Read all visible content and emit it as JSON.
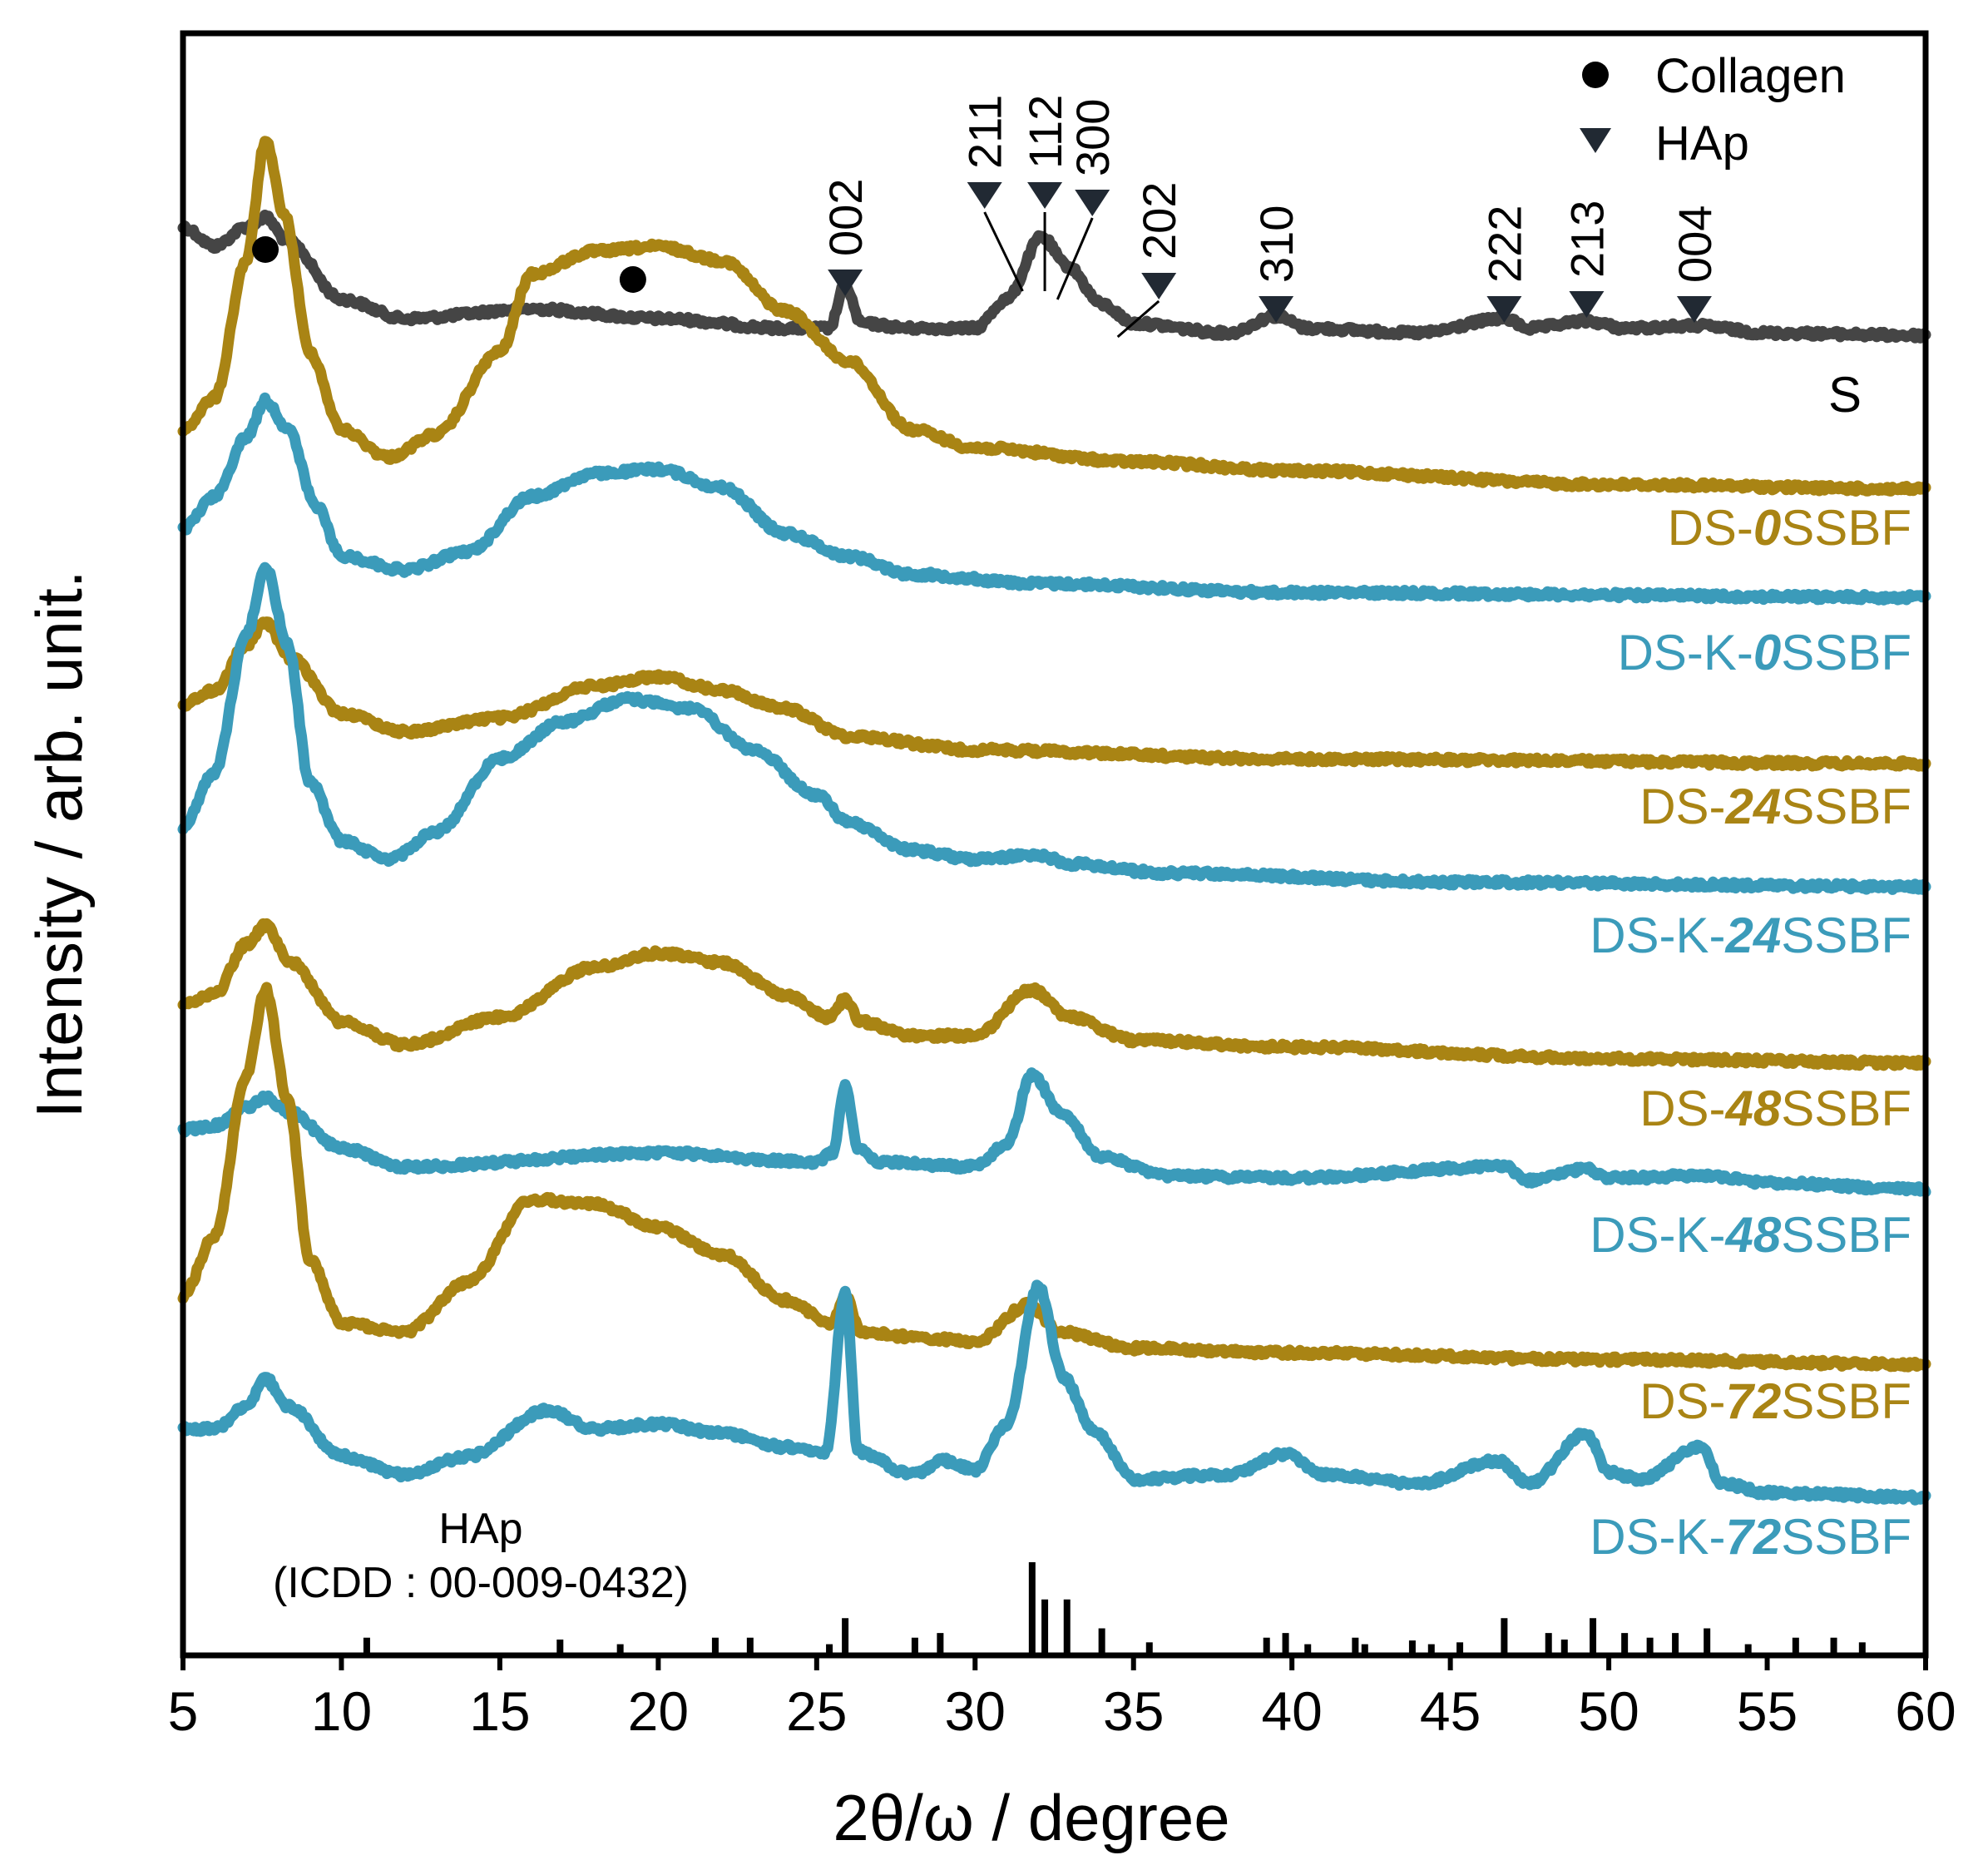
{
  "chart_data": {
    "type": "line",
    "xlabel": "2θ/ω / degree",
    "ylabel": "Intensity / arb. unit.",
    "xlim": [
      5,
      60
    ],
    "xticks": [
      5,
      10,
      15,
      20,
      25,
      30,
      35,
      40,
      45,
      50,
      55,
      60
    ],
    "legend": {
      "position": "top-right",
      "entries": [
        {
          "label": "Collagen",
          "marker": "circle"
        },
        {
          "label": "HAp",
          "marker": "triangle-down"
        }
      ]
    },
    "colors": {
      "S": "#454545",
      "DS": "#A98414",
      "DS-K": "#3B9BBA",
      "axis": "#000000"
    },
    "collagen_peaks": [
      7.6,
      19.2
    ],
    "hap_peaks": [
      {
        "hkl": "002",
        "x": 25.9
      },
      {
        "hkl": "211",
        "x": 30.3
      },
      {
        "hkl": "112",
        "x": 32.2
      },
      {
        "hkl": "300",
        "x": 33.7
      },
      {
        "hkl": "202",
        "x": 35.8
      },
      {
        "hkl": "310",
        "x": 39.5
      },
      {
        "hkl": "222",
        "x": 46.7
      },
      {
        "hkl": "213",
        "x": 49.3
      },
      {
        "hkl": "004",
        "x": 52.7
      }
    ],
    "series": [
      {
        "name": "S",
        "group": "S",
        "label_prefix": "",
        "label_em": "",
        "label_suffix": "S",
        "points": [
          [
            5,
            2.4
          ],
          [
            6,
            2.0
          ],
          [
            7,
            2.4
          ],
          [
            7.6,
            2.6
          ],
          [
            8.3,
            2.1
          ],
          [
            10,
            0.9
          ],
          [
            12,
            0.5
          ],
          [
            16,
            0.7
          ],
          [
            20,
            0.5
          ],
          [
            24,
            0.3
          ],
          [
            25.4,
            0.3
          ],
          [
            25.9,
            1.2
          ],
          [
            26.4,
            0.4
          ],
          [
            28,
            0.3
          ],
          [
            30,
            0.3
          ],
          [
            31,
            0.9
          ],
          [
            32.1,
            2.2
          ],
          [
            32.9,
            1.6
          ],
          [
            34,
            0.8
          ],
          [
            35,
            0.4
          ],
          [
            38,
            0.2
          ],
          [
            39.5,
            0.55
          ],
          [
            40.5,
            0.3
          ],
          [
            44,
            0.2
          ],
          [
            46.7,
            0.5
          ],
          [
            47.5,
            0.3
          ],
          [
            49.3,
            0.45
          ],
          [
            50.5,
            0.3
          ],
          [
            52.8,
            0.35
          ],
          [
            55,
            0.2
          ],
          [
            60,
            0.15
          ]
        ]
      },
      {
        "name": "DS-0SSBF",
        "group": "DS",
        "label_prefix": "DS-",
        "label_em": "0",
        "label_suffix": "SSBF",
        "points": [
          [
            5,
            1.3
          ],
          [
            6,
            2.0
          ],
          [
            7,
            5.0
          ],
          [
            7.6,
            7.6
          ],
          [
            8.2,
            6.0
          ],
          [
            9,
            3.0
          ],
          [
            10,
            1.3
          ],
          [
            11.5,
            0.7
          ],
          [
            13,
            1.2
          ],
          [
            15,
            3.0
          ],
          [
            16,
            4.7
          ],
          [
            18,
            5.2
          ],
          [
            20,
            5.3
          ],
          [
            22,
            5.0
          ],
          [
            24,
            3.9
          ],
          [
            26,
            2.8
          ],
          [
            28,
            1.3
          ],
          [
            30,
            0.9
          ],
          [
            35,
            0.6
          ],
          [
            40,
            0.4
          ],
          [
            50,
            0.1
          ],
          [
            60,
            0
          ]
        ]
      },
      {
        "name": "DS-K-0SSBF",
        "group": "DS-K",
        "label_prefix": "DS-K-",
        "label_em": "0",
        "label_suffix": "SSBF",
        "points": [
          [
            5,
            1.5
          ],
          [
            6,
            2.2
          ],
          [
            7,
            3.5
          ],
          [
            7.6,
            4.3
          ],
          [
            8.3,
            3.7
          ],
          [
            9.2,
            2.0
          ],
          [
            10,
            0.9
          ],
          [
            12,
            0.6
          ],
          [
            14,
            1.0
          ],
          [
            16,
            2.2
          ],
          [
            18,
            2.7
          ],
          [
            20,
            2.8
          ],
          [
            22,
            2.4
          ],
          [
            24,
            1.4
          ],
          [
            26,
            0.9
          ],
          [
            28,
            0.5
          ],
          [
            32,
            0.3
          ],
          [
            40,
            0.1
          ],
          [
            60,
            0
          ]
        ]
      },
      {
        "name": "DS-24SSBF",
        "group": "DS",
        "label_prefix": "DS-",
        "label_em": "24",
        "label_suffix": "SSBF",
        "points": [
          [
            5,
            1.3
          ],
          [
            6,
            1.6
          ],
          [
            7,
            2.6
          ],
          [
            7.6,
            3.1
          ],
          [
            8.4,
            2.3
          ],
          [
            10,
            1.1
          ],
          [
            12,
            0.7
          ],
          [
            15,
            1.0
          ],
          [
            18,
            1.7
          ],
          [
            20,
            1.9
          ],
          [
            22,
            1.6
          ],
          [
            24,
            1.2
          ],
          [
            26,
            0.6
          ],
          [
            30,
            0.3
          ],
          [
            40,
            0.1
          ],
          [
            60,
            0
          ]
        ]
      },
      {
        "name": "DS-K-24SSBF",
        "group": "DS-K",
        "label_prefix": "DS-K-",
        "label_em": "24",
        "label_suffix": "SSBF",
        "points": [
          [
            5,
            1.3
          ],
          [
            6,
            2.5
          ],
          [
            7,
            5.5
          ],
          [
            7.6,
            7.0
          ],
          [
            8.3,
            5.3
          ],
          [
            9,
            2.3
          ],
          [
            10,
            1.0
          ],
          [
            11.5,
            0.6
          ],
          [
            13,
            1.2
          ],
          [
            15,
            2.8
          ],
          [
            17,
            3.6
          ],
          [
            19,
            4.1
          ],
          [
            21,
            3.9
          ],
          [
            23,
            3.0
          ],
          [
            25,
            2.0
          ],
          [
            26,
            1.4
          ],
          [
            28,
            0.8
          ],
          [
            30,
            0.6
          ],
          [
            32,
            0.7
          ],
          [
            33,
            0.5
          ],
          [
            36,
            0.3
          ],
          [
            45,
            0.1
          ],
          [
            60,
            0
          ]
        ]
      },
      {
        "name": "DS-48SSBF",
        "group": "DS",
        "label_prefix": "DS-",
        "label_em": "48",
        "label_suffix": "SSBF",
        "points": [
          [
            5,
            1.3
          ],
          [
            6,
            1.5
          ],
          [
            7,
            2.6
          ],
          [
            7.6,
            3.0
          ],
          [
            8.4,
            2.2
          ],
          [
            10,
            0.9
          ],
          [
            12,
            0.4
          ],
          [
            15,
            1.0
          ],
          [
            18,
            2.1
          ],
          [
            20,
            2.4
          ],
          [
            22,
            2.2
          ],
          [
            24,
            1.5
          ],
          [
            25.4,
            1.0
          ],
          [
            25.9,
            1.4
          ],
          [
            26.4,
            0.9
          ],
          [
            28,
            0.6
          ],
          [
            30,
            0.6
          ],
          [
            31.8,
            1.6
          ],
          [
            33,
            1.0
          ],
          [
            35,
            0.5
          ],
          [
            40,
            0.35
          ],
          [
            50,
            0.1
          ],
          [
            60,
            0
          ]
        ]
      },
      {
        "name": "DS-K-48SSBF",
        "group": "DS-K",
        "label_prefix": "DS-K-",
        "label_em": "48",
        "label_suffix": "SSBF",
        "points": [
          [
            5,
            1.3
          ],
          [
            6,
            1.4
          ],
          [
            7,
            1.8
          ],
          [
            7.6,
            2.0
          ],
          [
            8.3,
            1.7
          ],
          [
            10,
            0.9
          ],
          [
            12,
            0.5
          ],
          [
            20,
            0.8
          ],
          [
            25,
            0.6
          ],
          [
            25.5,
            0.8
          ],
          [
            25.9,
            2.3
          ],
          [
            26.3,
            0.9
          ],
          [
            27,
            0.6
          ],
          [
            30,
            0.5
          ],
          [
            31,
            1.0
          ],
          [
            31.8,
            2.5
          ],
          [
            32.8,
            1.6
          ],
          [
            34,
            0.7
          ],
          [
            36,
            0.3
          ],
          [
            40,
            0.25
          ],
          [
            46.7,
            0.5
          ],
          [
            47.5,
            0.2
          ],
          [
            49.3,
            0.45
          ],
          [
            50,
            0.25
          ],
          [
            53,
            0.3
          ],
          [
            55,
            0.15
          ],
          [
            60,
            0
          ]
        ]
      },
      {
        "name": "DS-72SSBF",
        "group": "DS",
        "label_prefix": "DS-",
        "label_em": "72",
        "label_suffix": "SSBF",
        "points": [
          [
            5,
            1.5
          ],
          [
            6,
            2.8
          ],
          [
            7,
            6.3
          ],
          [
            7.6,
            8.2
          ],
          [
            8.3,
            5.8
          ],
          [
            9,
            2.3
          ],
          [
            10,
            0.9
          ],
          [
            12,
            0.7
          ],
          [
            14,
            1.8
          ],
          [
            16,
            3.6
          ],
          [
            18,
            3.5
          ],
          [
            20,
            3.0
          ],
          [
            22,
            2.4
          ],
          [
            24,
            1.4
          ],
          [
            25.5,
            0.9
          ],
          [
            25.9,
            1.5
          ],
          [
            26.4,
            0.7
          ],
          [
            28,
            0.6
          ],
          [
            30,
            0.5
          ],
          [
            31.7,
            1.3
          ],
          [
            32.7,
            0.7
          ],
          [
            35,
            0.35
          ],
          [
            40,
            0.25
          ],
          [
            50,
            0.1
          ],
          [
            60,
            0
          ]
        ]
      },
      {
        "name": "DS-K-72SSBF",
        "group": "DS-K",
        "label_prefix": "DS-K-",
        "label_em": "72",
        "label_suffix": "SSBF",
        "points": [
          [
            5,
            1.5
          ],
          [
            6,
            1.5
          ],
          [
            7,
            2.0
          ],
          [
            7.6,
            2.6
          ],
          [
            8.3,
            2.0
          ],
          [
            10,
            0.9
          ],
          [
            12,
            0.5
          ],
          [
            14,
            0.9
          ],
          [
            16.5,
            1.9
          ],
          [
            18,
            1.5
          ],
          [
            20,
            1.6
          ],
          [
            22,
            1.4
          ],
          [
            24,
            1.1
          ],
          [
            25.3,
            1.0
          ],
          [
            25.9,
            4.5
          ],
          [
            26.3,
            1.0
          ],
          [
            28,
            0.5
          ],
          [
            29,
            0.8
          ],
          [
            30,
            0.6
          ],
          [
            31,
            1.6
          ],
          [
            32,
            4.6
          ],
          [
            32.8,
            2.6
          ],
          [
            33.8,
            1.4
          ],
          [
            35,
            0.4
          ],
          [
            38,
            0.5
          ],
          [
            39.8,
            0.95
          ],
          [
            41,
            0.5
          ],
          [
            44,
            0.3
          ],
          [
            46.5,
            0.8
          ],
          [
            47.5,
            0.3
          ],
          [
            49.3,
            1.4
          ],
          [
            50,
            0.55
          ],
          [
            51,
            0.4
          ],
          [
            52.9,
            1.1
          ],
          [
            53.6,
            0.3
          ],
          [
            55,
            0.1
          ],
          [
            60,
            0
          ]
        ]
      }
    ],
    "reference": {
      "name": "HAp",
      "source": "(ICDD : 00-009-0432)",
      "lines": [
        [
          10.8,
          0.19
        ],
        [
          16.9,
          0.17
        ],
        [
          18.8,
          0.12
        ],
        [
          21.8,
          0.19
        ],
        [
          22.9,
          0.19
        ],
        [
          25.4,
          0.12
        ],
        [
          25.9,
          0.4
        ],
        [
          28.1,
          0.19
        ],
        [
          28.9,
          0.24
        ],
        [
          31.8,
          1.0
        ],
        [
          32.2,
          0.6
        ],
        [
          32.9,
          0.6
        ],
        [
          34.0,
          0.29
        ],
        [
          35.5,
          0.14
        ],
        [
          39.2,
          0.19
        ],
        [
          39.8,
          0.24
        ],
        [
          40.5,
          0.12
        ],
        [
          42.0,
          0.19
        ],
        [
          42.3,
          0.12
        ],
        [
          43.8,
          0.16
        ],
        [
          44.4,
          0.12
        ],
        [
          45.3,
          0.14
        ],
        [
          46.7,
          0.4
        ],
        [
          48.1,
          0.24
        ],
        [
          48.6,
          0.17
        ],
        [
          49.5,
          0.4
        ],
        [
          50.5,
          0.24
        ],
        [
          51.3,
          0.19
        ],
        [
          52.1,
          0.24
        ],
        [
          53.1,
          0.29
        ],
        [
          54.4,
          0.12
        ],
        [
          55.9,
          0.19
        ],
        [
          57.1,
          0.19
        ],
        [
          58.0,
          0.14
        ]
      ]
    }
  }
}
